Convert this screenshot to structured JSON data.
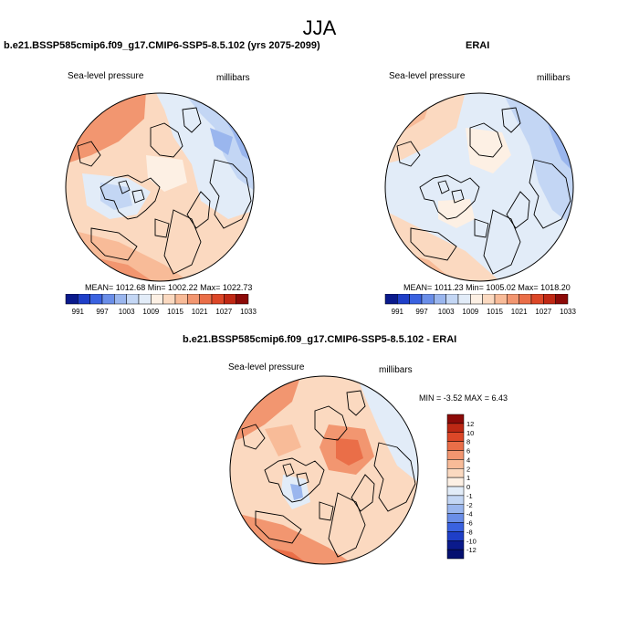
{
  "season": "JJA",
  "panels": [
    {
      "id": "model",
      "title": "b.e21.BSSP585cmip6.f09_g17.CMIP6-SSP5-8.5.102 (yrs 2075-2099)",
      "left_label": "Sea-level pressure",
      "right_label": "millibars",
      "stats": "MEAN= 1012.68   Min= 1002.22   Max= 1022.73"
    },
    {
      "id": "obs",
      "title": "ERAI",
      "left_label": "Sea-level pressure",
      "right_label": "millibars",
      "stats": "MEAN= 1011.23   Min= 1005.02   Max= 1018.20"
    },
    {
      "id": "diff",
      "title": "b.e21.BSSP585cmip6.f09_g17.CMIP6-SSP5-8.5.102 - ERAI",
      "left_label": "Sea-level pressure",
      "right_label": "millibars",
      "stats": "MIN =  -3.52 MAX =   6.43"
    }
  ],
  "chart_data": [
    {
      "type": "heatmap",
      "projection": "north polar stereographic",
      "title": "b.e21.BSSP585cmip6.f09_g17.CMIP6-SSP5-8.5.102 (yrs 2075-2099)",
      "variable": "Sea-level pressure",
      "units": "millibars",
      "mean": 1012.68,
      "min": 1002.22,
      "max": 1022.73,
      "colorbar_orientation": "horizontal",
      "colorbar_ticks": [
        "991",
        "997",
        "1003",
        "1009",
        "1015",
        "1021",
        "1027",
        "1033"
      ]
    },
    {
      "type": "heatmap",
      "projection": "north polar stereographic",
      "title": "ERAI",
      "variable": "Sea-level pressure",
      "units": "millibars",
      "mean": 1011.23,
      "min": 1005.02,
      "max": 1018.2,
      "colorbar_orientation": "horizontal",
      "colorbar_ticks": [
        "991",
        "997",
        "1003",
        "1009",
        "1015",
        "1021",
        "1027",
        "1033"
      ]
    },
    {
      "type": "heatmap",
      "projection": "north polar stereographic",
      "title": "b.e21.BSSP585cmip6.f09_g17.CMIP6-SSP5-8.5.102 - ERAI",
      "variable": "Sea-level pressure",
      "units": "millibars",
      "min": -3.52,
      "max": 6.43,
      "colorbar_orientation": "vertical",
      "colorbar_ticks": [
        "12",
        "10",
        "8",
        "6",
        "4",
        "2",
        "1",
        "0",
        "-1",
        "-2",
        "-4",
        "-6",
        "-8",
        "-10",
        "-12"
      ]
    }
  ],
  "colorbar_abs_colors": [
    "#0a1a8c",
    "#1f3fc8",
    "#3a62e0",
    "#6a8ee8",
    "#9ab6ee",
    "#c3d6f4",
    "#e2ecf8",
    "#fdf0e4",
    "#fbd9c0",
    "#f8bb98",
    "#f29670",
    "#ea6e48",
    "#dc4728",
    "#c02814",
    "#8c0a08"
  ],
  "colorbar_diff_colors": [
    "#8c0a08",
    "#bd2814",
    "#dc4728",
    "#ea6e48",
    "#f29670",
    "#f8bb98",
    "#fbd9c0",
    "#fdf0e4",
    "#e2ecf8",
    "#c3d6f4",
    "#9ab6ee",
    "#6a8ee8",
    "#3a62e0",
    "#1f3fc8",
    "#0a1a8c",
    "#051070"
  ]
}
